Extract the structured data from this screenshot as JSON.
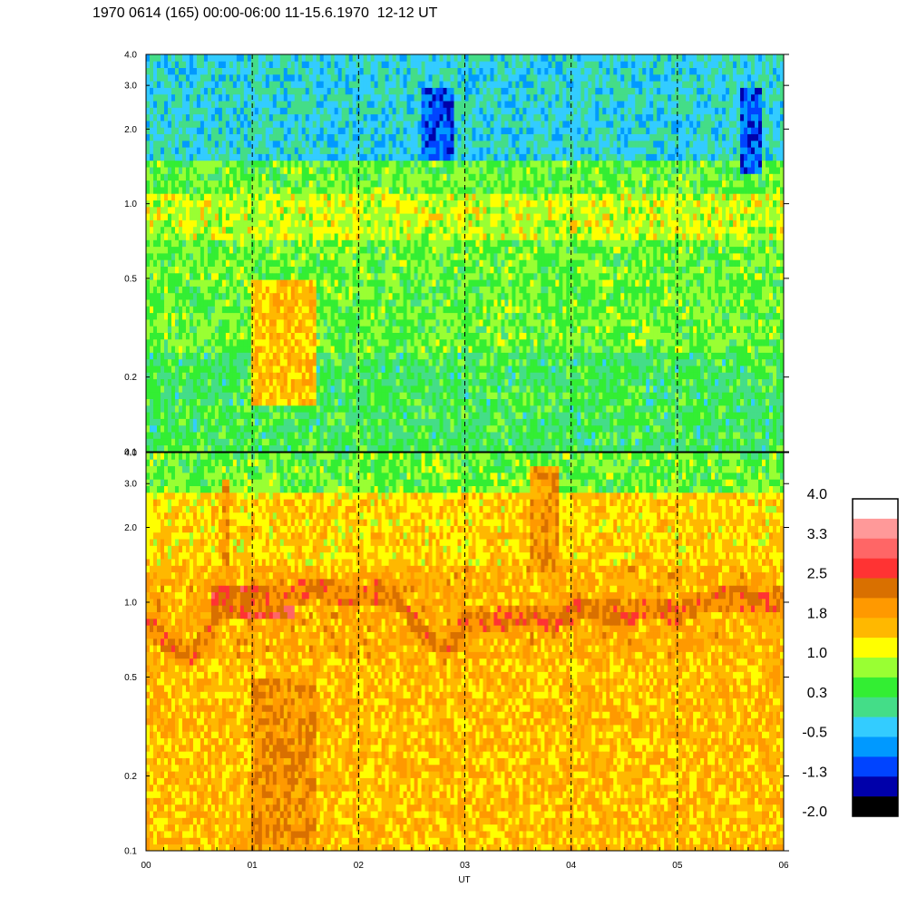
{
  "header": {
    "title": "1970 0614 (165) 00:00-06:00 11-15.6.1970  12-12 UT"
  },
  "chart_data": {
    "type": "heatmap",
    "title": "1970 0614 (165) 00:00-06:00 11-15.6.1970  12-12 UT",
    "xlabel": "UT",
    "x_ticks": [
      "00",
      "01",
      "02",
      "03",
      "04",
      "05",
      "06"
    ],
    "xlim": [
      0,
      6
    ],
    "y_scale": "log",
    "ylim": [
      0.1,
      4.0
    ],
    "y_ticks": [
      0.1,
      0.2,
      0.5,
      1.0,
      2.0,
      3.0,
      4.0
    ],
    "y_tick_labels": [
      "0.1",
      "0.2",
      "0.5",
      "1.0",
      "2.0",
      "3.0",
      "4.0"
    ],
    "dashed_gridlines_x": [
      1,
      2,
      3,
      4,
      5
    ],
    "panels": [
      {
        "name": "top",
        "dominant_levels": [
          {
            "y_from": 0.1,
            "y_to": 0.25,
            "level": 0.3
          },
          {
            "y_from": 0.25,
            "y_to": 0.7,
            "level": 0.6
          },
          {
            "y_from": 0.7,
            "y_to": 1.1,
            "level": 1.0
          },
          {
            "y_from": 1.1,
            "y_to": 1.5,
            "level": 0.6
          },
          {
            "y_from": 1.5,
            "y_to": 4.0,
            "level": -0.2
          }
        ],
        "features": [
          {
            "x_from": 1.0,
            "x_to": 1.6,
            "y_from": 0.15,
            "y_to": 0.5,
            "level": 1.5
          },
          {
            "x_from": 2.6,
            "x_to": 2.9,
            "y_from": 1.5,
            "y_to": 3.0,
            "level": -1.0
          },
          {
            "x_from": 5.6,
            "x_to": 5.8,
            "y_from": 1.3,
            "y_to": 3.0,
            "level": -1.0
          }
        ]
      },
      {
        "name": "bottom",
        "dominant_levels": [
          {
            "y_from": 0.1,
            "y_to": 0.6,
            "level": 1.6
          },
          {
            "y_from": 0.6,
            "y_to": 1.4,
            "level": 1.7
          },
          {
            "y_from": 1.4,
            "y_to": 2.8,
            "level": 1.4
          },
          {
            "y_from": 2.8,
            "y_to": 4.0,
            "level": 0.6
          }
        ],
        "band": {
          "level": 2.2,
          "points": [
            [
              0.0,
              0.8
            ],
            [
              0.2,
              0.7
            ],
            [
              0.4,
              0.6
            ],
            [
              0.6,
              0.75
            ],
            [
              0.7,
              0.95
            ],
            [
              1.0,
              1.0
            ],
            [
              1.3,
              1.05
            ],
            [
              1.6,
              1.15
            ],
            [
              1.9,
              1.05
            ],
            [
              2.2,
              1.1
            ],
            [
              2.4,
              1.0
            ],
            [
              2.5,
              0.85
            ],
            [
              2.7,
              0.7
            ],
            [
              2.8,
              0.62
            ],
            [
              3.0,
              0.82
            ],
            [
              3.3,
              0.85
            ],
            [
              3.6,
              0.9
            ],
            [
              3.8,
              0.85
            ],
            [
              4.1,
              0.95
            ],
            [
              4.5,
              0.9
            ],
            [
              4.8,
              0.95
            ],
            [
              5.0,
              0.88
            ],
            [
              5.2,
              1.0
            ],
            [
              5.5,
              1.05
            ],
            [
              5.8,
              1.0
            ],
            [
              6.0,
              1.05
            ]
          ]
        },
        "features": [
          {
            "x_from": 0.6,
            "x_to": 1.4,
            "y_from": 0.85,
            "y_to": 1.15,
            "level": 2.6
          },
          {
            "x_from": 0.7,
            "x_to": 0.8,
            "y_from": 1.2,
            "y_to": 3.2,
            "level": 2.0
          },
          {
            "x_from": 3.6,
            "x_to": 3.9,
            "y_from": 1.3,
            "y_to": 3.5,
            "level": 2.0
          },
          {
            "x_from": 3.7,
            "x_to": 3.9,
            "y_from": 0.75,
            "y_to": 0.9,
            "level": 2.7
          },
          {
            "x_from": 1.0,
            "x_to": 1.6,
            "y_from": 0.1,
            "y_to": 0.5,
            "level": 2.0
          }
        ]
      }
    ],
    "colorbar": {
      "labels": [
        "4.0",
        "3.3",
        "2.5",
        "1.8",
        "1.0",
        "0.3",
        "-0.5",
        "-1.3",
        "-2.0"
      ],
      "colors": [
        "#ffffff",
        "#ff9999",
        "#ff6666",
        "#ff3333",
        "#d97000",
        "#ff9900",
        "#ffb800",
        "#ffff00",
        "#99ff33",
        "#33ee33",
        "#44dd88",
        "#33ccff",
        "#0099ff",
        "#0044ff",
        "#0000aa",
        "#000000"
      ]
    }
  }
}
